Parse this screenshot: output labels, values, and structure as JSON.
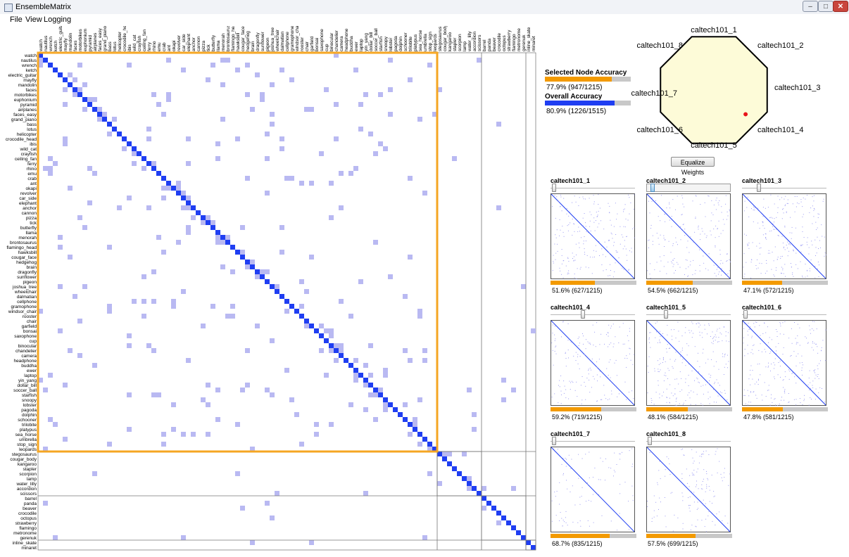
{
  "window": {
    "title": "EnsembleMatrix",
    "min_label": "–",
    "max_label": "□",
    "close_label": "✕",
    "icon": "window-icon"
  },
  "menu": [
    "File",
    "View",
    "Logging"
  ],
  "colors": {
    "diagonal": "#1f3ef2",
    "offdiag": "#b9b9f2",
    "selection": "#f5a623",
    "overall": "#1f3ef2",
    "bar_bg": "#c8c8c8",
    "octagon_fill": "#fdfbd8",
    "weight_point": "#e8141b"
  },
  "matrix": {
    "classes": [
      "watch",
      "nautilus",
      "wrench",
      "ketch",
      "electric_guitar",
      "mayfly",
      "mandolin",
      "faces",
      "motorbikes",
      "euphonium",
      "pyramid",
      "airplanes",
      "faces_easy",
      "grand_piano",
      "bass",
      "lotus",
      "helicopter",
      "crocodile_head",
      "ibis",
      "wild_cat",
      "crayfish",
      "ceiling_fan",
      "ferry",
      "rhino",
      "emu",
      "crab",
      "ant",
      "okapi",
      "revolver",
      "car_side",
      "elephant",
      "anchor",
      "cannon",
      "pizza",
      "tick",
      "butterfly",
      "llama",
      "menorah",
      "brontosaurus",
      "flamingo_head",
      "hawksbill",
      "cougar_face",
      "hedgehog",
      "brain",
      "dragonfly",
      "sunflower",
      "pigeon",
      "joshua_tree",
      "wheelchair",
      "dalmatian",
      "cellphone",
      "gramophone",
      "windsor_chair",
      "rooster",
      "chair",
      "garfield",
      "bonsai",
      "saxophone",
      "cup",
      "binocular",
      "chandelier",
      "camera",
      "headphone",
      "buddha",
      "ewer",
      "laptop",
      "yin_yang",
      "dollar_bill",
      "soccer_ball",
      "starfish",
      "snoopy",
      "lobster",
      "pagoda",
      "dolphin",
      "schooner",
      "trilobite",
      "platypus",
      "sea_horse",
      "umbrella",
      "stop_sign",
      "leopards",
      "stegosaurus",
      "cougar_body",
      "kangaroo",
      "stapler",
      "scorpion",
      "lamp",
      "water_lilly",
      "accordion",
      "scissors",
      "barrel",
      "panda",
      "beaver",
      "crocodile",
      "octopus",
      "strawberry",
      "flamingo",
      "metronome",
      "gerenuk",
      "inline_skate",
      "minaret"
    ],
    "groups": [
      [
        0,
        81
      ],
      [
        81,
        90
      ],
      [
        90,
        99
      ],
      [
        99,
        101
      ]
    ]
  },
  "accuracy": {
    "selected_label": "Selected Node Accuracy",
    "selected_value": 0.779,
    "selected_text": "77.9%  (947/1215)",
    "overall_label": "Overall Accuracy",
    "overall_value": 0.809,
    "overall_text": "80.9%  (1226/1515)"
  },
  "octagon": {
    "labels": [
      "caltech101_1",
      "caltech101_2",
      "caltech101_3",
      "caltech101_4",
      "caltech101_5",
      "caltech101_6",
      "caltech101_7",
      "caltech101_8"
    ],
    "point_value": [
      0.55,
      0.28
    ]
  },
  "equalize_label": "Equalize Weights",
  "models": [
    {
      "name": "caltech101_1",
      "weight": 0.02,
      "accuracy": 0.516,
      "text": "51.6%  (627/1215)",
      "noise": 0.09,
      "stripe": false
    },
    {
      "name": "caltech101_2",
      "weight": 0.05,
      "accuracy": 0.545,
      "text": "54.5%  (662/1215)",
      "noise": 0.08,
      "stripe": false,
      "active": true
    },
    {
      "name": "caltech101_3",
      "weight": 0.18,
      "accuracy": 0.471,
      "text": "47.1%  (572/1215)",
      "noise": 0.1,
      "stripe": false
    },
    {
      "name": "caltech101_4",
      "weight": 0.38,
      "accuracy": 0.592,
      "text": "59.2%  (719/1215)",
      "noise": 0.07,
      "stripe": false
    },
    {
      "name": "caltech101_5",
      "weight": 0.22,
      "accuracy": 0.481,
      "text": "48.1%  (584/1215)",
      "noise": 0.1,
      "stripe": false
    },
    {
      "name": "caltech101_6",
      "weight": 0.02,
      "accuracy": 0.478,
      "text": "47.8%  (581/1215)",
      "noise": 0.1,
      "stripe": false
    },
    {
      "name": "caltech101_7",
      "weight": 0.02,
      "accuracy": 0.687,
      "text": "68.7%  (835/1215)",
      "noise": 0.04,
      "stripe": false
    },
    {
      "name": "caltech101_8",
      "weight": 0.02,
      "accuracy": 0.575,
      "text": "57.5%  (699/1215)",
      "noise": 0.06,
      "stripe": true
    }
  ]
}
